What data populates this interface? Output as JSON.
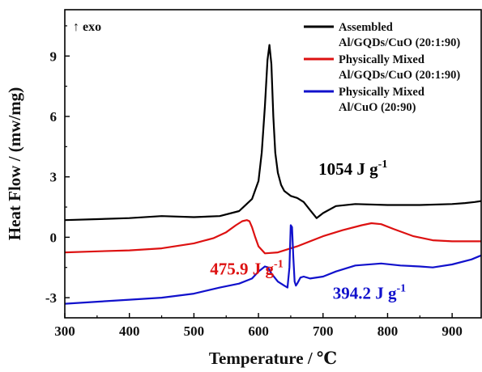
{
  "chart_data": {
    "type": "line",
    "xlabel": "Temperature / ℃",
    "ylabel": "Heat Flow / (mw/mg)",
    "xlim": [
      300,
      945
    ],
    "ylim": [
      -4.0,
      11.3
    ],
    "xticks": [
      300,
      400,
      500,
      600,
      700,
      800,
      900
    ],
    "yticks": [
      -3,
      0,
      3,
      6,
      9
    ],
    "grid": false,
    "legend_position": "top-right",
    "corner_label": "↑ exo",
    "series": [
      {
        "name_lines": [
          "Assembled",
          "Al/GQDs/CuO (20:1:90)"
        ],
        "color": "#000000",
        "x": [
          300,
          350,
          400,
          450,
          500,
          540,
          570,
          590,
          600,
          605,
          610,
          614,
          617,
          620,
          623,
          626,
          630,
          635,
          640,
          650,
          660,
          670,
          680,
          690,
          700,
          720,
          750,
          800,
          850,
          900,
          920,
          935,
          945
        ],
        "y": [
          0.85,
          0.9,
          0.95,
          1.05,
          1.0,
          1.05,
          1.3,
          1.9,
          2.8,
          4.2,
          6.5,
          8.8,
          9.55,
          8.6,
          6.0,
          4.2,
          3.2,
          2.6,
          2.3,
          2.05,
          1.95,
          1.75,
          1.35,
          0.95,
          1.2,
          1.55,
          1.65,
          1.6,
          1.6,
          1.65,
          1.7,
          1.75,
          1.8
        ]
      },
      {
        "name_lines": [
          "Physically Mixed",
          "Al/GQDs/CuO (20:1:90)"
        ],
        "color": "#dd1111",
        "x": [
          300,
          350,
          400,
          450,
          500,
          530,
          550,
          565,
          575,
          582,
          586,
          590,
          595,
          600,
          610,
          630,
          660,
          700,
          730,
          760,
          775,
          790,
          810,
          840,
          870,
          900,
          920,
          945
        ],
        "y": [
          -0.75,
          -0.7,
          -0.65,
          -0.55,
          -0.3,
          -0.05,
          0.25,
          0.6,
          0.8,
          0.85,
          0.8,
          0.5,
          0.0,
          -0.45,
          -0.8,
          -0.75,
          -0.45,
          0.05,
          0.35,
          0.6,
          0.7,
          0.65,
          0.4,
          0.05,
          -0.15,
          -0.2,
          -0.2,
          -0.2
        ]
      },
      {
        "name_lines": [
          "Physically Mixed",
          "Al/CuO (20:90)"
        ],
        "color": "#1111cc",
        "x": [
          300,
          350,
          400,
          450,
          500,
          540,
          570,
          590,
          600,
          610,
          615,
          620,
          630,
          640,
          645,
          648,
          650,
          652,
          654,
          656,
          658,
          660,
          665,
          670,
          680,
          700,
          720,
          750,
          790,
          820,
          850,
          870,
          900,
          930,
          945
        ],
        "y": [
          -3.3,
          -3.2,
          -3.1,
          -3.0,
          -2.8,
          -2.5,
          -2.3,
          -2.05,
          -1.7,
          -1.45,
          -1.5,
          -1.8,
          -2.2,
          -2.4,
          -2.5,
          -1.5,
          0.6,
          0.5,
          -1.0,
          -2.2,
          -2.4,
          -2.3,
          -2.0,
          -1.95,
          -2.05,
          -1.95,
          -1.7,
          -1.4,
          -1.3,
          -1.4,
          -1.45,
          -1.5,
          -1.35,
          -1.1,
          -0.9
        ]
      }
    ],
    "annotations": [
      {
        "value": "1054",
        "unit": "J g",
        "exp": "-1",
        "color": "#000000",
        "x": 693,
        "y": 3.1
      },
      {
        "value": "475.9",
        "unit": "J g",
        "exp": "-1",
        "color": "#dd1111",
        "x": 525,
        "y": -1.85
      },
      {
        "value": "394.2",
        "unit": "J g",
        "exp": "-1",
        "color": "#1111cc",
        "x": 715,
        "y": -3.05
      }
    ]
  }
}
